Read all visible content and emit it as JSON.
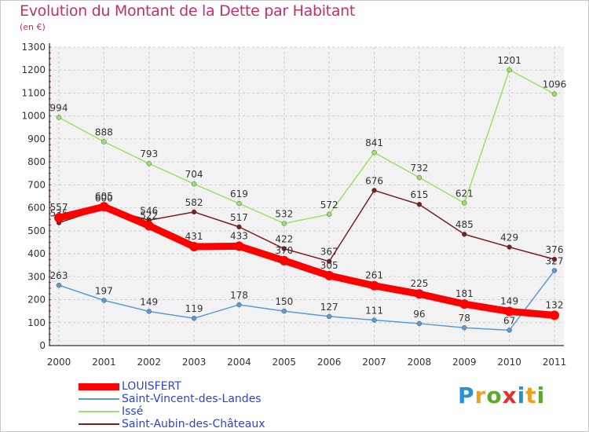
{
  "header": {
    "title": "Evolution du Montant de la Dette par Habitant",
    "subtitle": "(en €)"
  },
  "logo": {
    "text": "Proxiti",
    "letters": [
      {
        "ch": "P",
        "color": "#2b8fd4"
      },
      {
        "ch": "r",
        "color": "#f0a020"
      },
      {
        "ch": "o",
        "color": "#5aaa30"
      },
      {
        "ch": "x",
        "color": "#e03030"
      },
      {
        "ch": "i",
        "color": "#2b8fd4"
      },
      {
        "ch": "t",
        "color": "#f0a020"
      },
      {
        "ch": "i",
        "color": "#5aaa30"
      }
    ]
  },
  "chart_data": {
    "type": "line",
    "x": [
      "2000",
      "2001",
      "2002",
      "2003",
      "2004",
      "2005",
      "2006",
      "2007",
      "2008",
      "2009",
      "2010",
      "2011"
    ],
    "ylim": [
      0,
      1300
    ],
    "yticks": [
      0,
      100,
      200,
      300,
      400,
      500,
      600,
      700,
      800,
      900,
      1000,
      1100,
      1200,
      1300
    ],
    "grid": true,
    "legend_position": "bottom-left",
    "series": [
      {
        "name": "Saint-Vincent-des-Landes",
        "color": "#5b9bd5",
        "values": [
          263,
          197,
          149,
          119,
          178,
          150,
          127,
          111,
          96,
          78,
          67,
          327
        ],
        "labels": [
          "263",
          "197",
          "149",
          "119",
          "178",
          "150",
          "127",
          "111",
          "96",
          "78",
          "67",
          "327"
        ]
      },
      {
        "name": "Issé",
        "color": "#9be06a",
        "values": [
          994,
          888,
          793,
          704,
          619,
          532,
          572,
          841,
          732,
          621,
          1201,
          1096
        ],
        "labels": [
          "994",
          "888",
          "793",
          "704",
          "619",
          "532",
          "572",
          "841",
          "732",
          "621",
          "1201",
          "1096"
        ]
      },
      {
        "name": "Saint-Aubin-des-Châteaux",
        "color": "#7a1f1f",
        "values": [
          535,
          600,
          546,
          582,
          517,
          422,
          367,
          676,
          615,
          485,
          429,
          376
        ],
        "labels": [
          "535",
          "600",
          "546",
          "582",
          "517",
          "422",
          "367",
          "676",
          "615",
          "485",
          "429",
          "376"
        ]
      },
      {
        "name": "LOUISFERT",
        "color": "#ff0000",
        "values": [
          557,
          605,
          522,
          431,
          433,
          370,
          305,
          261,
          225,
          181,
          149,
          132
        ],
        "labels": [
          "557",
          "605",
          "522",
          "431",
          "433",
          "370",
          "305",
          "261",
          "225",
          "181",
          "149",
          "132"
        ]
      }
    ]
  },
  "legend": [
    {
      "name": "LOUISFERT",
      "color": "#ff0000",
      "text_color": "#2d46c8",
      "thick": true
    },
    {
      "name": "Saint-Vincent-des-Landes",
      "color": "#5b9bd5",
      "text_color": "#2d46c8",
      "thick": false
    },
    {
      "name": "Issé",
      "color": "#9be06a",
      "text_color": "#2d46c8",
      "thick": false
    },
    {
      "name": "Saint-Aubin-des-Châteaux",
      "color": "#7a1f1f",
      "text_color": "#2d46c8",
      "thick": false
    }
  ]
}
